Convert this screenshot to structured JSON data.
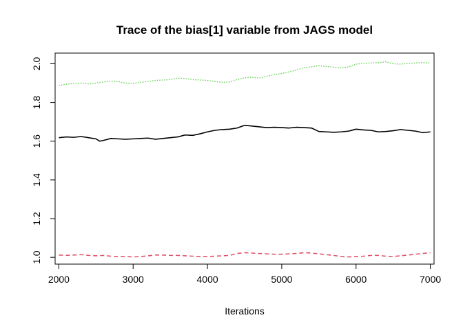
{
  "chart_data": {
    "type": "line",
    "title": "Trace of the bias[1] variable from JAGS model",
    "xlabel": "Iterations",
    "ylabel": "",
    "xlim": [
      1950,
      7050
    ],
    "ylim": [
      0.965,
      2.055
    ],
    "x_ticks": [
      2000,
      3000,
      4000,
      5000,
      6000,
      7000
    ],
    "x_tick_labels": [
      "2000",
      "3000",
      "4000",
      "5000",
      "6000",
      "7000"
    ],
    "y_ticks": [
      1.0,
      1.2,
      1.4,
      1.6,
      1.8,
      2.0
    ],
    "y_tick_labels": [
      "1.0",
      "1.2",
      "1.4",
      "1.6",
      "1.8",
      "2.0"
    ],
    "grid": false,
    "legend": "none",
    "series": [
      {
        "color": "#000000",
        "line_style": "solid",
        "x": [
          2000,
          2100,
          2200,
          2300,
          2400,
          2500,
          2550,
          2600,
          2700,
          2800,
          2900,
          3000,
          3100,
          3200,
          3300,
          3400,
          3500,
          3600,
          3700,
          3800,
          3900,
          4000,
          4100,
          4200,
          4300,
          4400,
          4500,
          4600,
          4700,
          4800,
          4900,
          5000,
          5100,
          5200,
          5300,
          5400,
          5500,
          5600,
          5700,
          5800,
          5900,
          6000,
          6100,
          6200,
          6300,
          6400,
          6500,
          6600,
          6700,
          6800,
          6900,
          7000
        ],
        "values": [
          1.618,
          1.622,
          1.62,
          1.624,
          1.618,
          1.612,
          1.6,
          1.604,
          1.614,
          1.612,
          1.61,
          1.612,
          1.614,
          1.616,
          1.61,
          1.614,
          1.618,
          1.622,
          1.632,
          1.63,
          1.638,
          1.648,
          1.656,
          1.66,
          1.662,
          1.668,
          1.682,
          1.678,
          1.674,
          1.67,
          1.672,
          1.67,
          1.668,
          1.672,
          1.67,
          1.668,
          1.65,
          1.648,
          1.646,
          1.648,
          1.652,
          1.662,
          1.658,
          1.656,
          1.648,
          1.65,
          1.654,
          1.66,
          1.656,
          1.652,
          1.644,
          1.648
        ]
      },
      {
        "color": "#df536b",
        "line_style": "dashed",
        "x": [
          2000,
          2100,
          2200,
          2300,
          2400,
          2500,
          2600,
          2700,
          2800,
          2900,
          3000,
          3100,
          3200,
          3300,
          3400,
          3500,
          3600,
          3700,
          3800,
          3900,
          4000,
          4100,
          4200,
          4300,
          4400,
          4500,
          4600,
          4700,
          4800,
          4900,
          5000,
          5100,
          5200,
          5300,
          5400,
          5500,
          5600,
          5700,
          5800,
          5900,
          6000,
          6100,
          6200,
          6300,
          6400,
          6500,
          6600,
          6700,
          6800,
          6900,
          7000
        ],
        "values": [
          1.012,
          1.01,
          1.012,
          1.014,
          1.01,
          1.008,
          1.01,
          1.006,
          1.004,
          1.004,
          1.002,
          1.004,
          1.008,
          1.012,
          1.012,
          1.01,
          1.01,
          1.008,
          1.006,
          1.004,
          1.004,
          1.006,
          1.008,
          1.01,
          1.02,
          1.024,
          1.022,
          1.02,
          1.018,
          1.016,
          1.016,
          1.018,
          1.02,
          1.024,
          1.022,
          1.018,
          1.014,
          1.01,
          1.004,
          1.002,
          1.004,
          1.006,
          1.01,
          1.01,
          1.006,
          1.004,
          1.008,
          1.012,
          1.016,
          1.02,
          1.024
        ]
      },
      {
        "color": "#61d04f",
        "line_style": "dotted",
        "x": [
          2000,
          2100,
          2200,
          2300,
          2400,
          2500,
          2600,
          2700,
          2800,
          2900,
          3000,
          3100,
          3200,
          3300,
          3400,
          3500,
          3600,
          3700,
          3800,
          3900,
          4000,
          4100,
          4200,
          4300,
          4400,
          4500,
          4600,
          4700,
          4800,
          4900,
          5000,
          5100,
          5200,
          5300,
          5400,
          5500,
          5600,
          5700,
          5800,
          5900,
          6000,
          6100,
          6200,
          6300,
          6400,
          6500,
          6600,
          6700,
          6800,
          6900,
          7000
        ],
        "values": [
          1.888,
          1.894,
          1.898,
          1.9,
          1.896,
          1.9,
          1.906,
          1.91,
          1.908,
          1.9,
          1.898,
          1.904,
          1.908,
          1.914,
          1.916,
          1.918,
          1.926,
          1.924,
          1.918,
          1.916,
          1.914,
          1.908,
          1.904,
          1.906,
          1.918,
          1.928,
          1.93,
          1.926,
          1.936,
          1.944,
          1.95,
          1.958,
          1.968,
          1.98,
          1.984,
          1.99,
          1.986,
          1.982,
          1.978,
          1.984,
          1.998,
          2.002,
          2.004,
          2.006,
          2.01,
          2.0,
          1.998,
          2.002,
          2.004,
          2.006,
          2.004
        ]
      }
    ]
  }
}
